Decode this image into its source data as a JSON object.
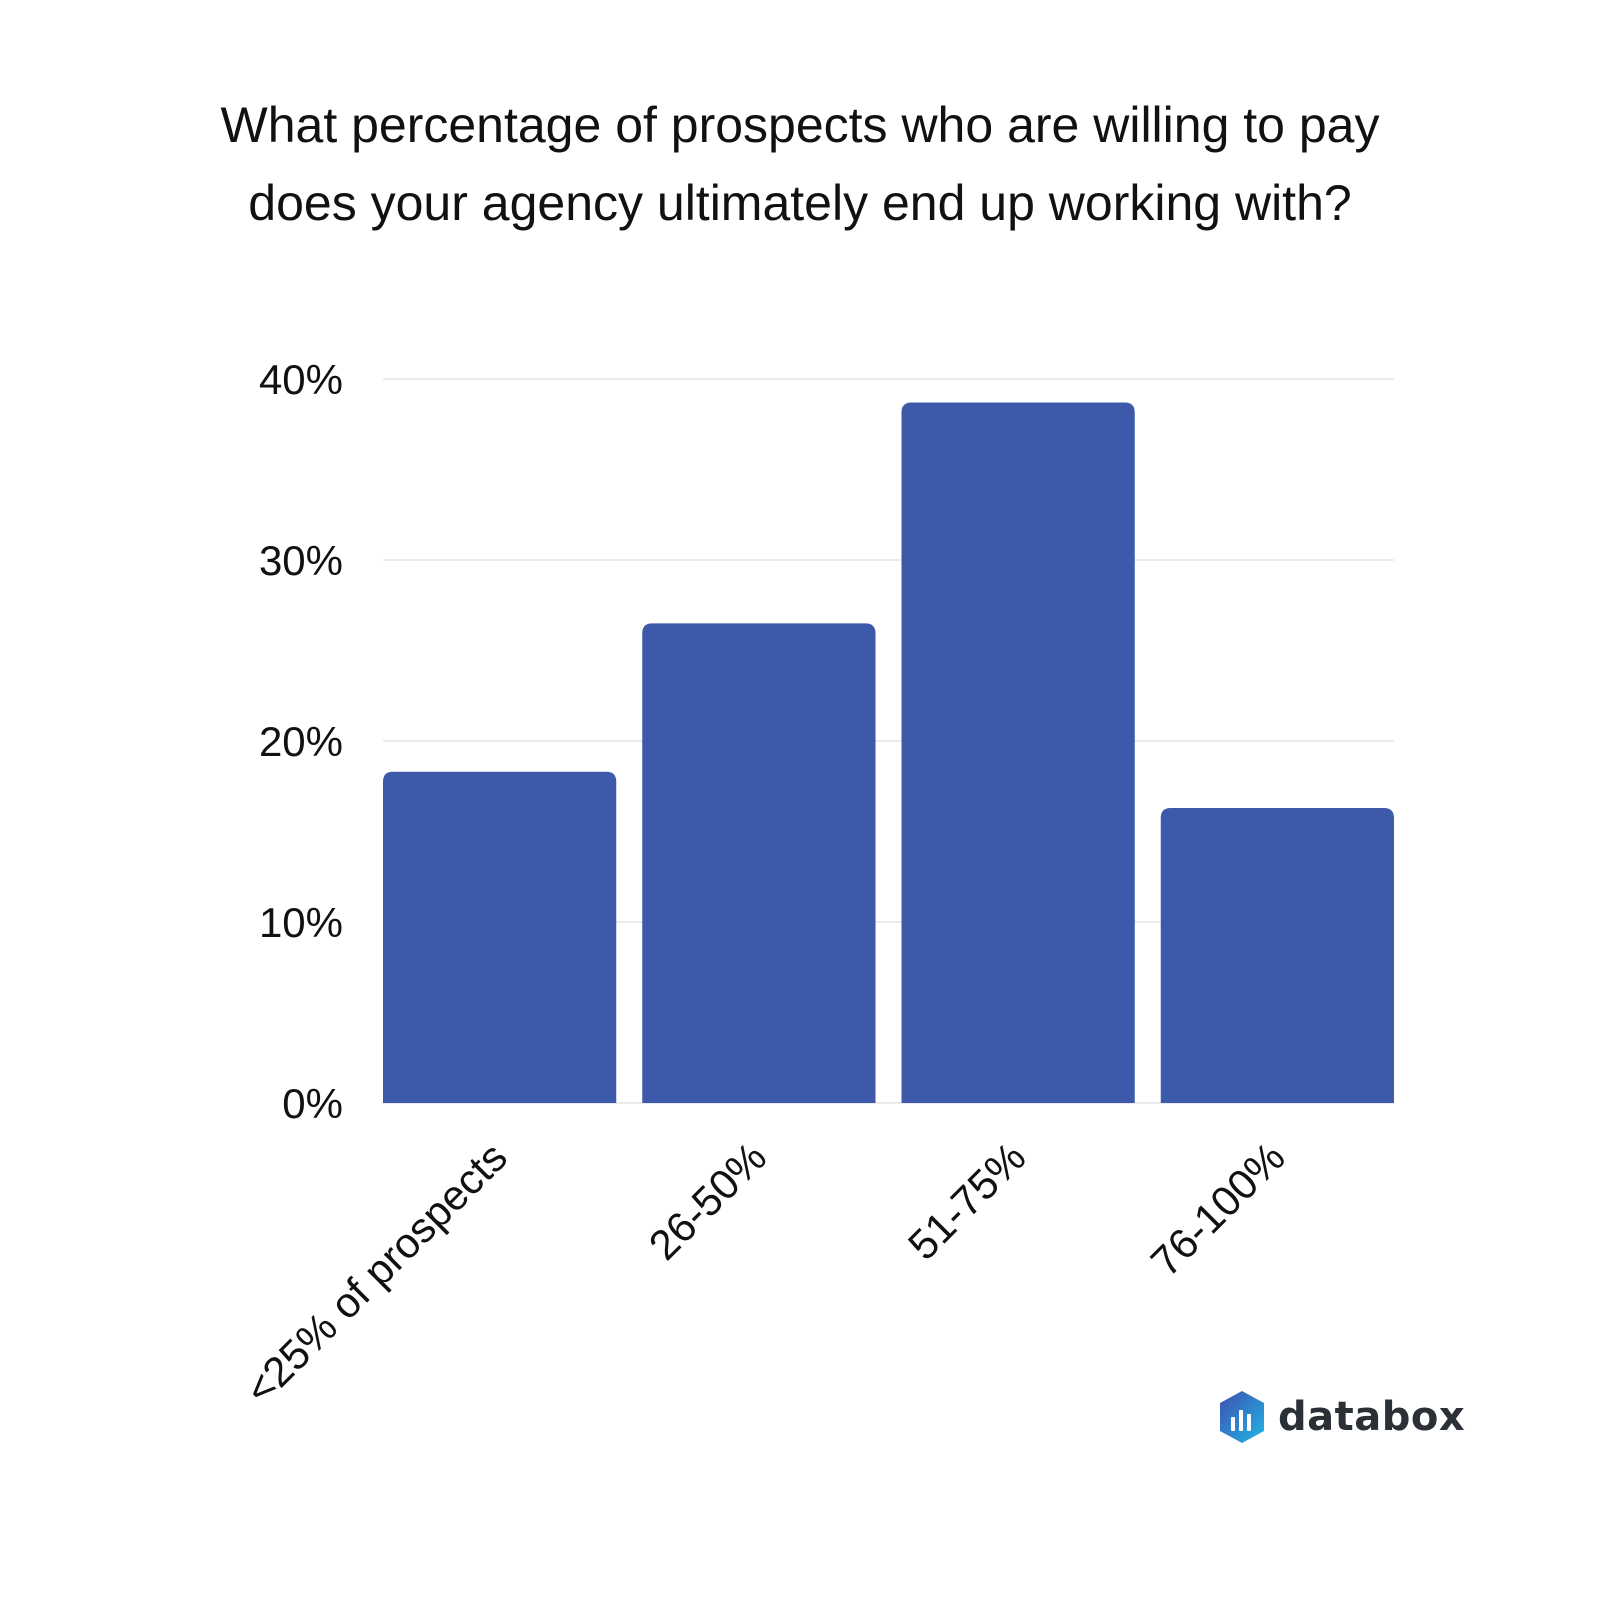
{
  "chart_data": {
    "type": "bar",
    "title": "What percentage of prospects who are willing to pay does your agency ultimately end up working with?",
    "title_lines": [
      "What percentage of prospects who are willing to pay",
      "does your agency ultimately end up working with?"
    ],
    "categories": [
      "<25% of prospects",
      "26-50%",
      "51-75%",
      "76-100%"
    ],
    "values": [
      18.3,
      26.5,
      38.7,
      16.3
    ],
    "ylim": [
      0,
      40
    ],
    "yticks": [
      "0%",
      "10%",
      "20%",
      "30%",
      "40%"
    ],
    "grid": true,
    "bar_color": "#3d5aaa",
    "xlabel": "",
    "ylabel": ""
  },
  "brand": {
    "name": "databox"
  }
}
